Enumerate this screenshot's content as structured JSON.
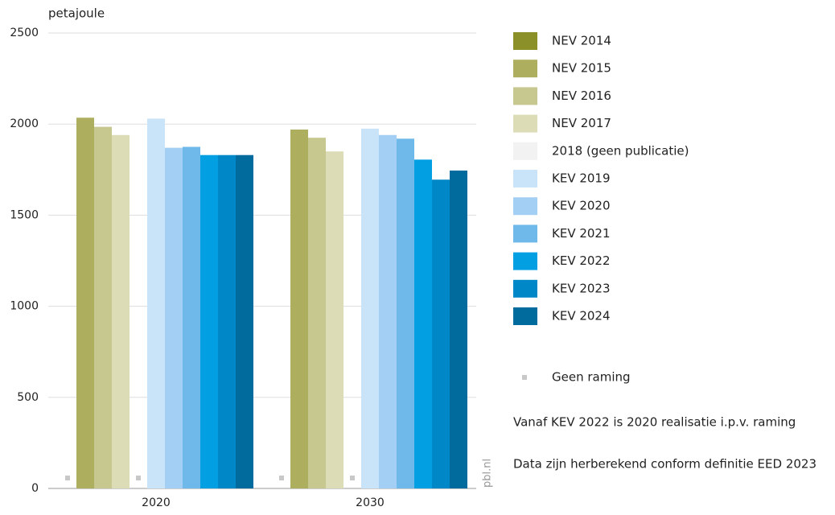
{
  "chart_data": {
    "type": "bar",
    "y_label": "petajoule",
    "categories": [
      "2020",
      "2030"
    ],
    "series": [
      {
        "name": "NEV 2014",
        "color": "#8b9128",
        "values": [
          null,
          null
        ]
      },
      {
        "name": "NEV 2015",
        "color": "#adae5e",
        "values": [
          2035,
          1970
        ]
      },
      {
        "name": "NEV 2016",
        "color": "#c7c88f",
        "values": [
          1985,
          1925
        ]
      },
      {
        "name": "NEV 2017",
        "color": "#dcdcb7",
        "values": [
          1940,
          1850
        ]
      },
      {
        "name": "2018 (geen publicatie)",
        "color": "#f2f2f2",
        "values": [
          null,
          null
        ]
      },
      {
        "name": "KEV 2019",
        "color": "#c9e4f8",
        "values": [
          2030,
          1975
        ]
      },
      {
        "name": "KEV 2020",
        "color": "#a2cff3",
        "values": [
          1870,
          1940
        ]
      },
      {
        "name": "KEV 2021",
        "color": "#6fb9ea",
        "values": [
          1875,
          1920
        ]
      },
      {
        "name": "KEV 2022",
        "color": "#029fe3",
        "values": [
          1830,
          1805
        ]
      },
      {
        "name": "KEV 2023",
        "color": "#0087c7",
        "values": [
          1830,
          1695
        ]
      },
      {
        "name": "KEV 2024",
        "color": "#006b9c",
        "values": [
          1830,
          1745
        ]
      }
    ],
    "ylim": [
      0,
      2500
    ],
    "yticks": [
      0,
      500,
      1000,
      1500,
      2000,
      2500
    ],
    "grid": true,
    "no_estimate_label": "Geen raming",
    "no_estimate_color": "#c8c8c8",
    "notes": [
      "Vanaf KEV 2022 is 2020 realisatie i.p.v. raming",
      "Data zijn herberekend conform definitie EED 2023"
    ],
    "watermark": "pbl.nl",
    "legend": "right"
  }
}
